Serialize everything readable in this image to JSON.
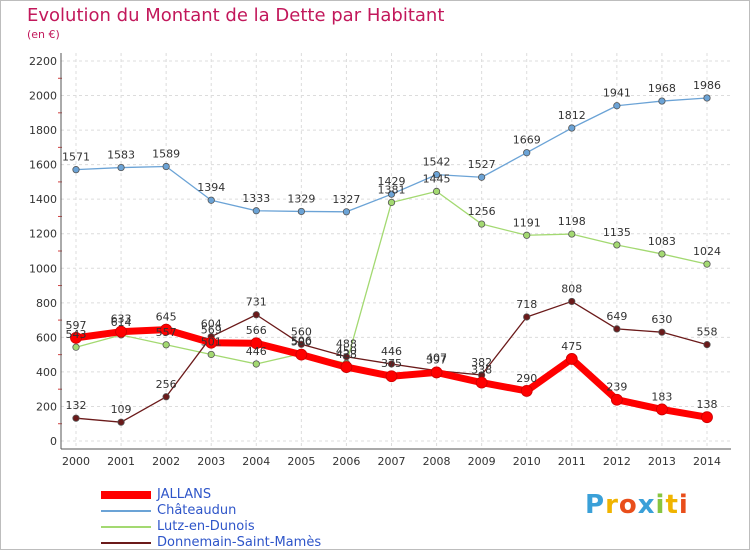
{
  "chart_data": {
    "type": "line",
    "title": "Evolution du Montant de la Dette par Habitant",
    "subtitle": "(en €)",
    "xlabel": "",
    "ylabel": "",
    "ylim": [
      0,
      2200
    ],
    "yticks": [
      0,
      200,
      400,
      600,
      800,
      1000,
      1200,
      1400,
      1600,
      1800,
      2000,
      2200
    ],
    "categories": [
      "2000",
      "2001",
      "2002",
      "2003",
      "2004",
      "2005",
      "2006",
      "2007",
      "2008",
      "2009",
      "2010",
      "2011",
      "2012",
      "2013",
      "2014"
    ],
    "grid": true,
    "legend_position": "bottom-left",
    "series": [
      {
        "name": "JALLANS",
        "color": "#ff0000",
        "values": [
          597,
          633,
          645,
          569,
          566,
          500,
          428,
          375,
          397,
          338,
          290,
          475,
          239,
          183,
          138
        ]
      },
      {
        "name": "Châteaudun",
        "color": "#6ba3d6",
        "values": [
          1571,
          1583,
          1589,
          1394,
          1333,
          1329,
          1327,
          1429,
          1542,
          1527,
          1669,
          1812,
          1941,
          1968,
          1986
        ]
      },
      {
        "name": "Lutz-en-Dunois",
        "color": "#a3d971",
        "values": [
          543,
          614,
          557,
          501,
          446,
          506,
          450,
          1381,
          1445,
          1256,
          1191,
          1198,
          1135,
          1083,
          1024
        ]
      },
      {
        "name": "Donnemain-Saint-Mamès",
        "color": "#6b1a1a",
        "values": [
          132,
          109,
          256,
          604,
          731,
          560,
          488,
          446,
          407,
          382,
          718,
          808,
          649,
          630,
          558
        ]
      }
    ]
  },
  "brand": {
    "logo_text": "Proxiti"
  }
}
